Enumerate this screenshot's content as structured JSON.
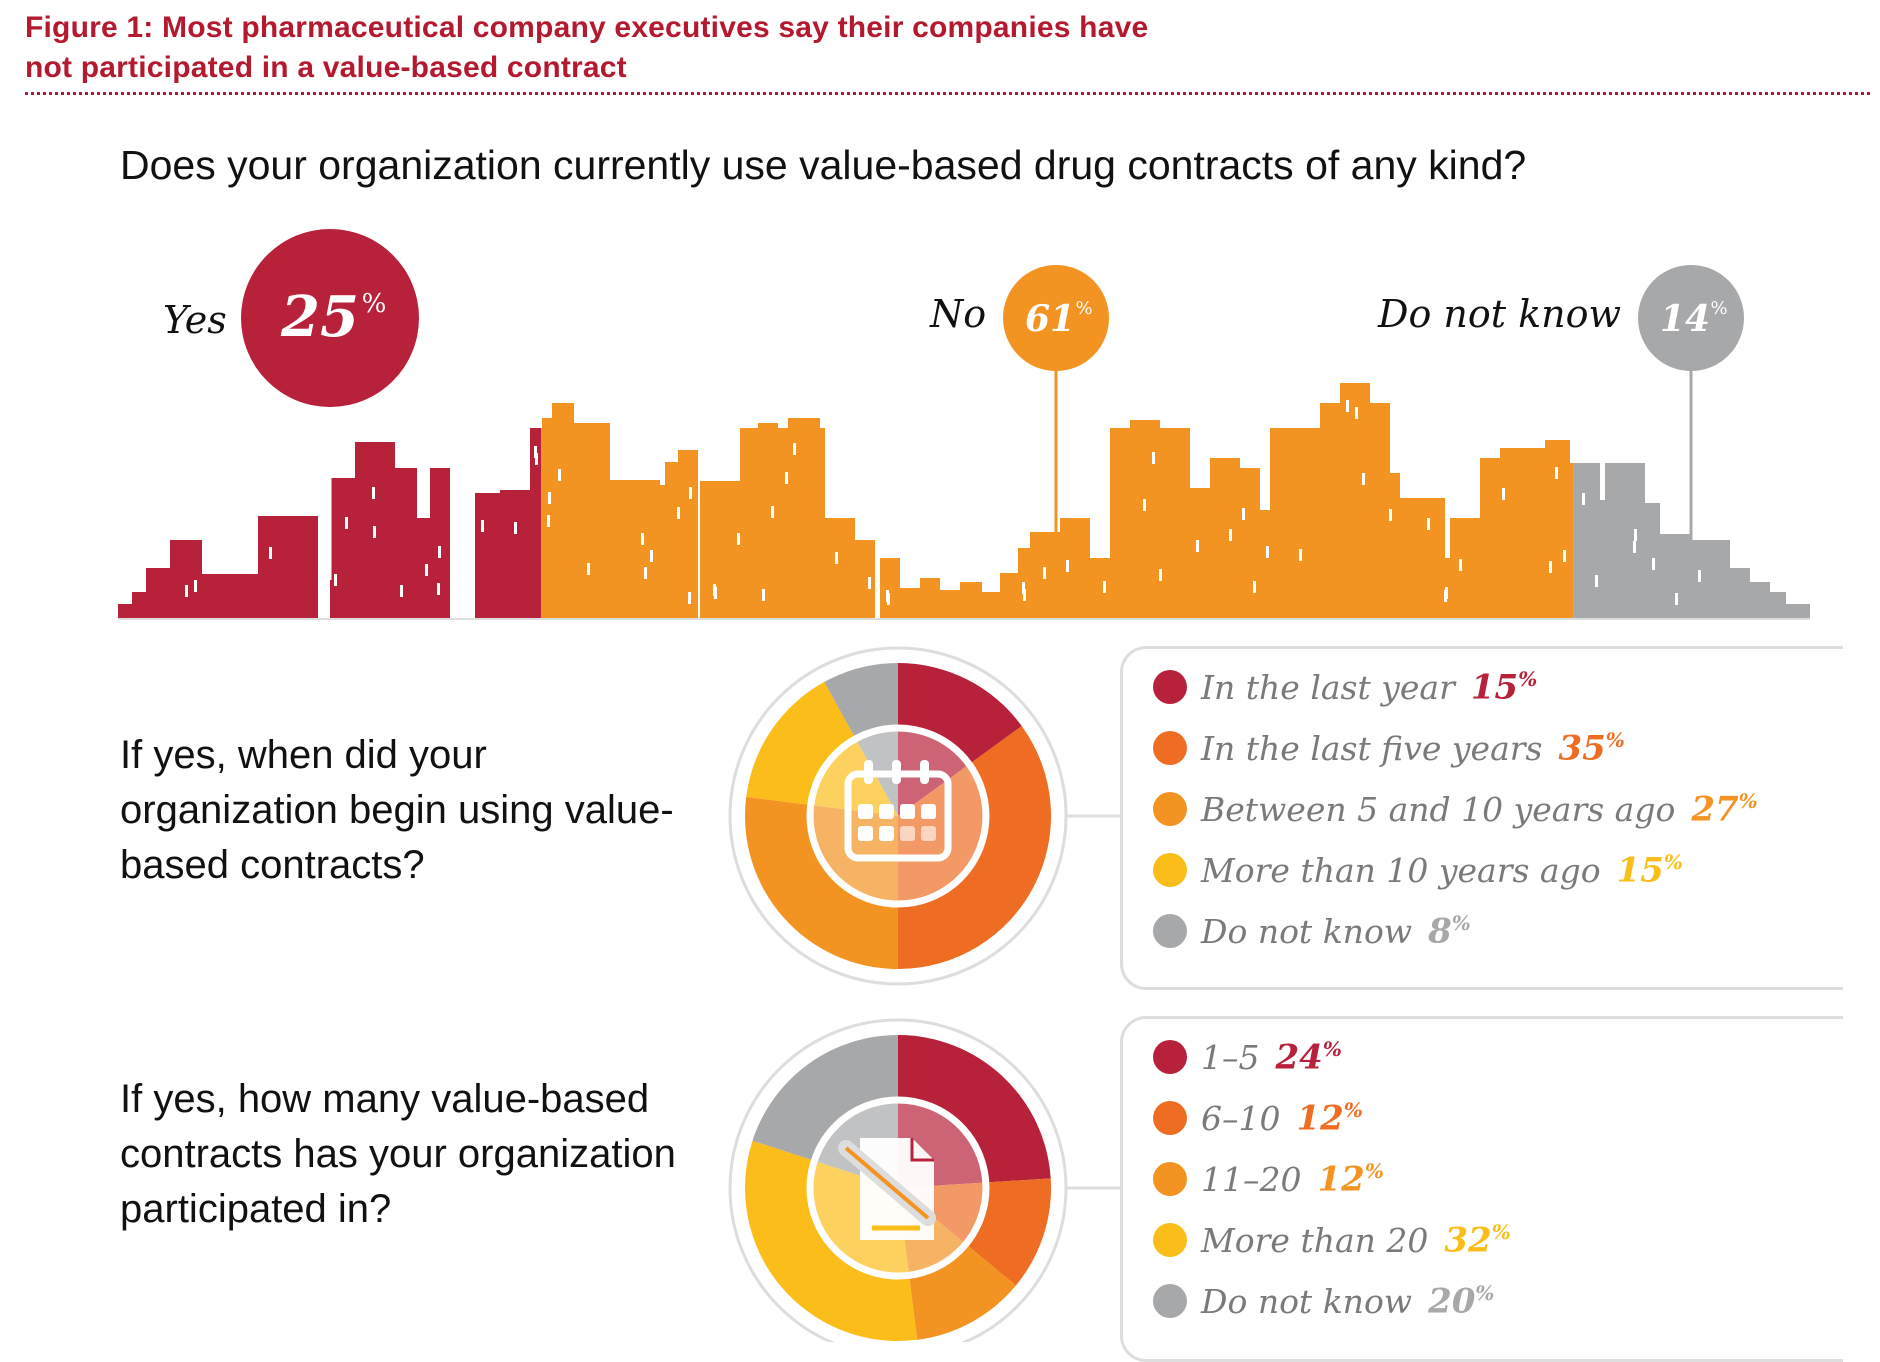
{
  "figure_title_line1": "Figure 1: Most pharmaceutical company executives say their companies have",
  "figure_title_line2": "not participated in a value-based contract",
  "colors": {
    "red": "#b8213a",
    "dark_orange": "#ee6d23",
    "orange": "#f39322",
    "yellow": "#fbbd19",
    "gray": "#a7a8aa",
    "title": "#b5192f"
  },
  "chart_data": [
    {
      "type": "bar",
      "title": "Does your organization currently use value-based drug contracts of any kind?",
      "categories": [
        "Yes",
        "No",
        "Do not know"
      ],
      "values": [
        25,
        61,
        14
      ],
      "value_labels": [
        "25",
        "61",
        "14"
      ],
      "unit": "%",
      "colors": [
        "#b8213a",
        "#f39322",
        "#a7a8aa"
      ]
    },
    {
      "type": "pie",
      "title": "If yes, when did your organization begin using value-based contracts?",
      "icon": "calendar-icon",
      "categories": [
        "In the last year",
        "In the last five years",
        "Between 5 and 10 years ago",
        "More than 10 years ago",
        "Do not know"
      ],
      "values": [
        15,
        35,
        27,
        15,
        8
      ],
      "value_labels": [
        "15",
        "35",
        "27",
        "15",
        "8"
      ],
      "unit": "%",
      "colors": [
        "#b8213a",
        "#ee6d23",
        "#f39322",
        "#fbbd19",
        "#a7a8aa"
      ]
    },
    {
      "type": "pie",
      "title": "If yes, how many value-based contracts has your organization participated in?",
      "icon": "document-pen-icon",
      "categories": [
        "1–5",
        "6–10",
        "11–20",
        "More than 20",
        "Do not know"
      ],
      "values": [
        24,
        12,
        12,
        32,
        20
      ],
      "value_labels": [
        "24",
        "12",
        "12",
        "32",
        "20"
      ],
      "unit": "%",
      "colors": [
        "#b8213a",
        "#ee6d23",
        "#f39322",
        "#fbbd19",
        "#a7a8aa"
      ]
    }
  ]
}
